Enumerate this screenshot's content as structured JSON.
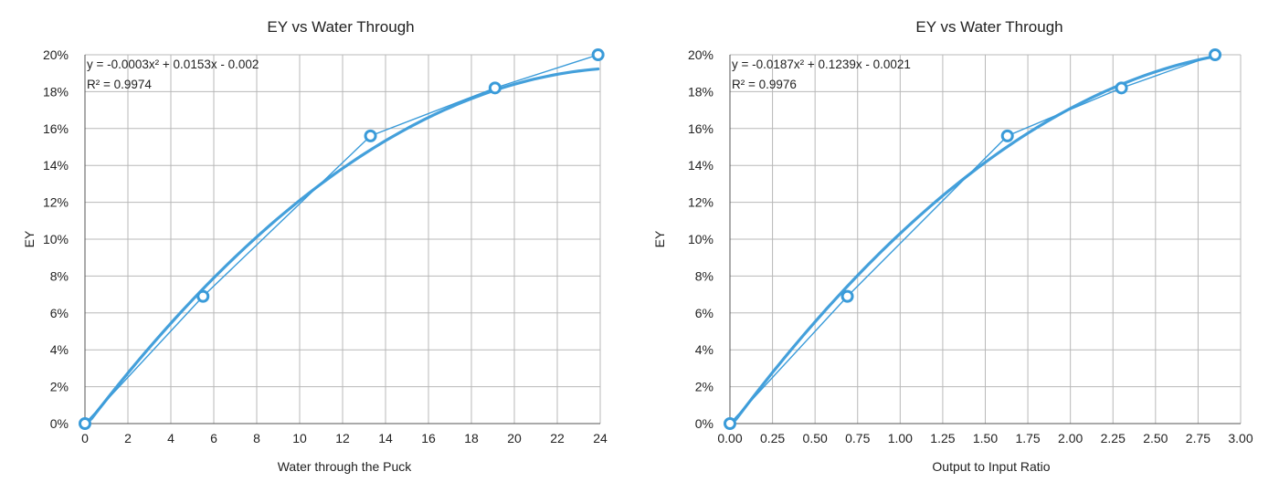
{
  "chart_data": [
    {
      "type": "scatter",
      "title": "EY vs Water Through",
      "xlabel": "Water through the Puck",
      "ylabel": "EY",
      "xlim": [
        0,
        24
      ],
      "ylim": [
        0,
        0.2
      ],
      "x_ticks": [
        "0",
        "2",
        "4",
        "6",
        "8",
        "10",
        "12",
        "14",
        "16",
        "18",
        "20",
        "22",
        "24"
      ],
      "y_ticks": [
        "0%",
        "2%",
        "4%",
        "6%",
        "8%",
        "10%",
        "12%",
        "14%",
        "16%",
        "18%",
        "20%"
      ],
      "grid": true,
      "series": [
        {
          "x": [
            0,
            5.5,
            13.3,
            19.1,
            23.9
          ],
          "y": [
            0,
            0.069,
            0.156,
            0.182,
            0.2
          ]
        }
      ],
      "trendline": {
        "type": "polynomial",
        "coefficients": [
          -0.0003,
          0.0153,
          -0.002
        ],
        "equation_text": "y = -0.0003x² + 0.0153x - 0.002",
        "r2_text": "R² = 0.9974"
      },
      "color": "#3a9bd9"
    },
    {
      "type": "scatter",
      "title": "EY vs Water Through",
      "xlabel": "Output to Input Ratio",
      "ylabel": "EY",
      "xlim": [
        0,
        3
      ],
      "ylim": [
        0,
        0.2
      ],
      "x_ticks": [
        "0.00",
        "0.25",
        "0.50",
        "0.75",
        "1.00",
        "1.25",
        "1.50",
        "1.75",
        "2.00",
        "2.25",
        "2.50",
        "2.75",
        "3.00"
      ],
      "y_ticks": [
        "0%",
        "2%",
        "4%",
        "6%",
        "8%",
        "10%",
        "12%",
        "14%",
        "16%",
        "18%",
        "20%"
      ],
      "grid": true,
      "series": [
        {
          "x": [
            0,
            0.69,
            1.63,
            2.3,
            2.85
          ],
          "y": [
            0,
            0.069,
            0.156,
            0.182,
            0.2
          ]
        }
      ],
      "trendline": {
        "type": "polynomial",
        "coefficients": [
          -0.0187,
          0.1239,
          -0.0021
        ],
        "equation_text": "y = -0.0187x² + 0.1239x - 0.0021",
        "r2_text": "R² = 0.9976"
      },
      "color": "#3a9bd9"
    }
  ]
}
